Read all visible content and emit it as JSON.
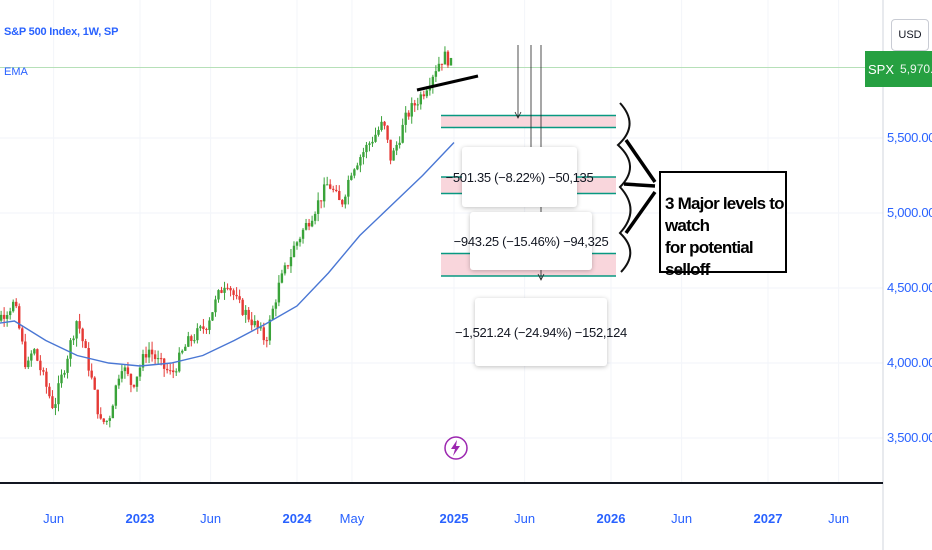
{
  "header": {
    "symbol_title": "S&P 500 Index, 1W, SP",
    "indicator_label": "EMA",
    "currency": "USD",
    "price_badge_symbol": "SPX",
    "price_badge_value": "5,970.00"
  },
  "annotation": {
    "note_line1": "3 Major levels to watch",
    "note_line2": "for potential selloff"
  },
  "measurements": [
    {
      "text": "−501.35 (−8.22%) −50,135"
    },
    {
      "text": "−943.25 (−15.46%) −94,325"
    },
    {
      "text": "−1,521.24 (−24.94%) −152,124"
    }
  ],
  "colors": {
    "up": "#26a69a",
    "up_candle": "#3aa33a",
    "down": "#e53935",
    "ema": "#4a77d4",
    "zone_fill": "#f9d6dc",
    "zone_border": "#089981",
    "badge": "#26a041",
    "axis_text": "#2962ff"
  },
  "chart_data": {
    "type": "candlestick",
    "title": "S&P 500 Index, 1W, SP",
    "price_axis": {
      "ticks": [
        "5,500.00",
        "5,000.00",
        "4,500.00",
        "4,000.00",
        "3,500.00"
      ],
      "tick_values": [
        5500,
        5000,
        4500,
        4000,
        3500
      ],
      "range": [
        3340,
        6150
      ]
    },
    "time_axis": {
      "labels": [
        "Jun",
        "2023",
        "Jun",
        "2024",
        "May",
        "2025",
        "Jun",
        "2026",
        "Jun",
        "2027",
        "Jun"
      ],
      "label_bold": [
        false,
        true,
        false,
        true,
        false,
        true,
        false,
        true,
        false,
        true,
        false
      ],
      "label_t": [
        2022.45,
        2023.0,
        2023.45,
        2024.0,
        2024.35,
        2025.0,
        2025.45,
        2026.0,
        2026.45,
        2027.0,
        2027.45
      ]
    },
    "price_trend": [
      [
        2022.0,
        4450
      ],
      [
        2022.1,
        4300
      ],
      [
        2022.2,
        4400
      ],
      [
        2022.28,
        3950
      ],
      [
        2022.32,
        4100
      ],
      [
        2022.45,
        3700
      ],
      [
        2022.55,
        4100
      ],
      [
        2022.6,
        4300
      ],
      [
        2022.68,
        3950
      ],
      [
        2022.75,
        3600
      ],
      [
        2022.8,
        3620
      ],
      [
        2022.88,
        4000
      ],
      [
        2022.95,
        3850
      ],
      [
        2023.05,
        4100
      ],
      [
        2023.12,
        4000
      ],
      [
        2023.2,
        3920
      ],
      [
        2023.3,
        4130
      ],
      [
        2023.42,
        4250
      ],
      [
        2023.5,
        4450
      ],
      [
        2023.55,
        4560
      ],
      [
        2023.62,
        4400
      ],
      [
        2023.7,
        4300
      ],
      [
        2023.8,
        4150
      ],
      [
        2023.88,
        4500
      ],
      [
        2023.98,
        4770
      ],
      [
        2024.1,
        5000
      ],
      [
        2024.2,
        5200
      ],
      [
        2024.28,
        5050
      ],
      [
        2024.35,
        5300
      ],
      [
        2024.45,
        5450
      ],
      [
        2024.55,
        5600
      ],
      [
        2024.6,
        5350
      ],
      [
        2024.7,
        5650
      ],
      [
        2024.8,
        5800
      ],
      [
        2024.9,
        6000
      ],
      [
        2024.95,
        6050
      ],
      [
        2025.0,
        5950
      ]
    ],
    "ema": [
      [
        2022.0,
        4250
      ],
      [
        2022.2,
        4280
      ],
      [
        2022.4,
        4150
      ],
      [
        2022.6,
        4050
      ],
      [
        2022.8,
        4000
      ],
      [
        2023.0,
        3980
      ],
      [
        2023.2,
        4000
      ],
      [
        2023.4,
        4050
      ],
      [
        2023.6,
        4150
      ],
      [
        2023.8,
        4260
      ],
      [
        2024.0,
        4380
      ],
      [
        2024.2,
        4600
      ],
      [
        2024.4,
        4850
      ],
      [
        2024.6,
        5050
      ],
      [
        2024.8,
        5250
      ],
      [
        2025.0,
        5470
      ]
    ],
    "support_zones": [
      {
        "low": 5570,
        "high": 5650
      },
      {
        "low": 5130,
        "high": 5240
      },
      {
        "low": 4580,
        "high": 4730
      }
    ],
    "current_price_line": 5970
  }
}
